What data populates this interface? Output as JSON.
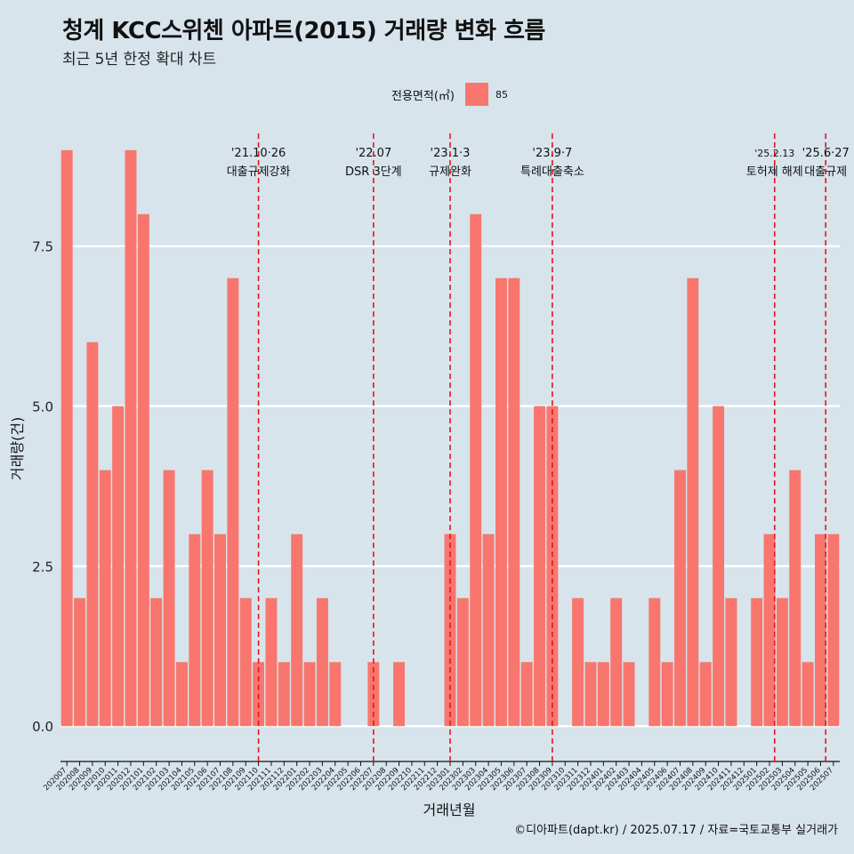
{
  "title": "청계 KCC스위첸 아파트(2015) 거래량 변화 흐름",
  "subtitle": "최근 5년 한정 확대 차트",
  "caption": "©디아파트(dapt.kr) / 2025.07.17 / 자료=국토교통부 실거래가",
  "legend": {
    "title": "전용면적(㎡)",
    "items": [
      {
        "label": "85",
        "color": "#f8766d"
      }
    ]
  },
  "colors": {
    "background": "#d7e4ec",
    "bar": "#f8766d",
    "event_line": "#e8141a",
    "grid": "#ffffff"
  },
  "chart_data": {
    "type": "bar",
    "xlabel": "거래년월",
    "ylabel": "거래량(건)",
    "ylim": [
      -0.4,
      9.4
    ],
    "yticks": [
      "0.0",
      "2.5",
      "5.0",
      "7.5"
    ],
    "ytick_values": [
      0,
      2.5,
      5,
      7.5
    ],
    "grid": true,
    "legend_position": "top",
    "categories": [
      "202007",
      "202008",
      "202009",
      "202010",
      "202011",
      "202012",
      "202101",
      "202102",
      "202103",
      "202104",
      "202105",
      "202106",
      "202107",
      "202108",
      "202109",
      "202110",
      "202111",
      "202112",
      "202201",
      "202202",
      "202203",
      "202204",
      "202205",
      "202206",
      "202207",
      "202208",
      "202209",
      "202210",
      "202211",
      "202212",
      "202301",
      "202302",
      "202303",
      "202304",
      "202305",
      "202306",
      "202307",
      "202308",
      "202309",
      "202310",
      "202311",
      "202312",
      "202401",
      "202402",
      "202403",
      "202404",
      "202405",
      "202406",
      "202407",
      "202408",
      "202409",
      "202410",
      "202411",
      "202412",
      "202501",
      "202502",
      "202503",
      "202504",
      "202505",
      "202506",
      "202507"
    ],
    "series": [
      {
        "name": "85",
        "values": [
          9,
          2,
          6,
          4,
          5,
          9,
          8,
          2,
          4,
          1,
          3,
          4,
          3,
          7,
          2,
          1,
          2,
          1,
          3,
          1,
          2,
          1,
          0,
          0,
          1,
          0,
          1,
          0,
          0,
          0,
          3,
          2,
          8,
          3,
          7,
          7,
          1,
          5,
          5,
          0,
          2,
          1,
          1,
          2,
          1,
          0,
          2,
          1,
          4,
          7,
          1,
          5,
          2,
          0,
          2,
          3,
          2,
          4,
          1,
          3,
          3
        ]
      }
    ],
    "events": [
      {
        "index": 15.0,
        "date": "'21.10·26",
        "label": "대출규제강화"
      },
      {
        "index": 24.0,
        "date": "'22.07",
        "label": "DSR 3단계"
      },
      {
        "index": 30.0,
        "date": "'23.1·3",
        "label": "규제완화"
      },
      {
        "index": 38.0,
        "date": "'23.9·7",
        "label": "특례대출축소"
      },
      {
        "index": 55.4,
        "date": "'25.2.13",
        "label": "토허제 해제"
      },
      {
        "index": 59.4,
        "date": "'25.6·27",
        "label": "대출규제"
      }
    ]
  }
}
